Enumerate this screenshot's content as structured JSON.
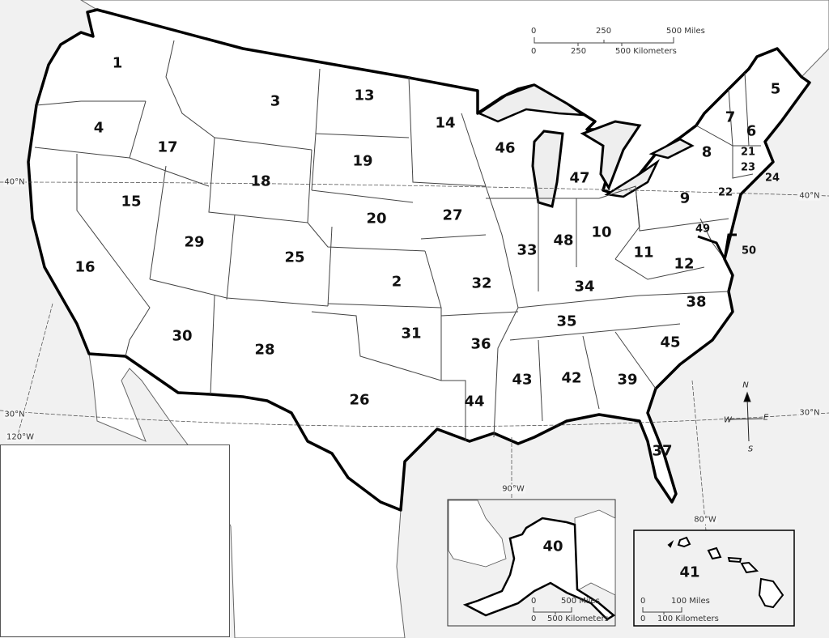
{
  "map": {
    "colors": {
      "water": "#f1f1f1",
      "land": "#ffffff",
      "border": "#000000",
      "neighbor_border": "#555555"
    },
    "states": [
      {
        "num": "1"
      },
      {
        "num": "2"
      },
      {
        "num": "3"
      },
      {
        "num": "4"
      },
      {
        "num": "5"
      },
      {
        "num": "6"
      },
      {
        "num": "7"
      },
      {
        "num": "8"
      },
      {
        "num": "9"
      },
      {
        "num": "10"
      },
      {
        "num": "11"
      },
      {
        "num": "12"
      },
      {
        "num": "13"
      },
      {
        "num": "14"
      },
      {
        "num": "15"
      },
      {
        "num": "16"
      },
      {
        "num": "17"
      },
      {
        "num": "18"
      },
      {
        "num": "19"
      },
      {
        "num": "20"
      },
      {
        "num": "21"
      },
      {
        "num": "22"
      },
      {
        "num": "23"
      },
      {
        "num": "24"
      },
      {
        "num": "25"
      },
      {
        "num": "26"
      },
      {
        "num": "27"
      },
      {
        "num": "28"
      },
      {
        "num": "29"
      },
      {
        "num": "30"
      },
      {
        "num": "31"
      },
      {
        "num": "32"
      },
      {
        "num": "33"
      },
      {
        "num": "34"
      },
      {
        "num": "35"
      },
      {
        "num": "36"
      },
      {
        "num": "37"
      },
      {
        "num": "38"
      },
      {
        "num": "39"
      },
      {
        "num": "40"
      },
      {
        "num": "41"
      },
      {
        "num": "42"
      },
      {
        "num": "43"
      },
      {
        "num": "44"
      },
      {
        "num": "45"
      },
      {
        "num": "46"
      },
      {
        "num": "47"
      },
      {
        "num": "48"
      },
      {
        "num": "49"
      },
      {
        "num": "50"
      }
    ],
    "graticule": {
      "lat40_left": "40°N",
      "lat30_left": "30°N",
      "lon120": "120°W",
      "lon90": "90°W",
      "lon80": "80°W",
      "lat40_right": "40°N",
      "lat30_right": "30°N"
    },
    "compass": {
      "n": "N",
      "s": "S",
      "e": "E",
      "w": "W"
    },
    "scale_main": {
      "miles_ticks": [
        "0",
        "250",
        "500 Miles"
      ],
      "km_ticks": [
        "0",
        "250",
        "500 Kilometers"
      ]
    },
    "scale_alaska": {
      "miles": [
        "0",
        "500 Miles"
      ],
      "km": [
        "0",
        "500 Kilometers"
      ]
    },
    "scale_hawaii": {
      "miles": [
        "0",
        "100 Miles"
      ],
      "km": [
        "0",
        "100 Kilometers"
      ]
    }
  }
}
